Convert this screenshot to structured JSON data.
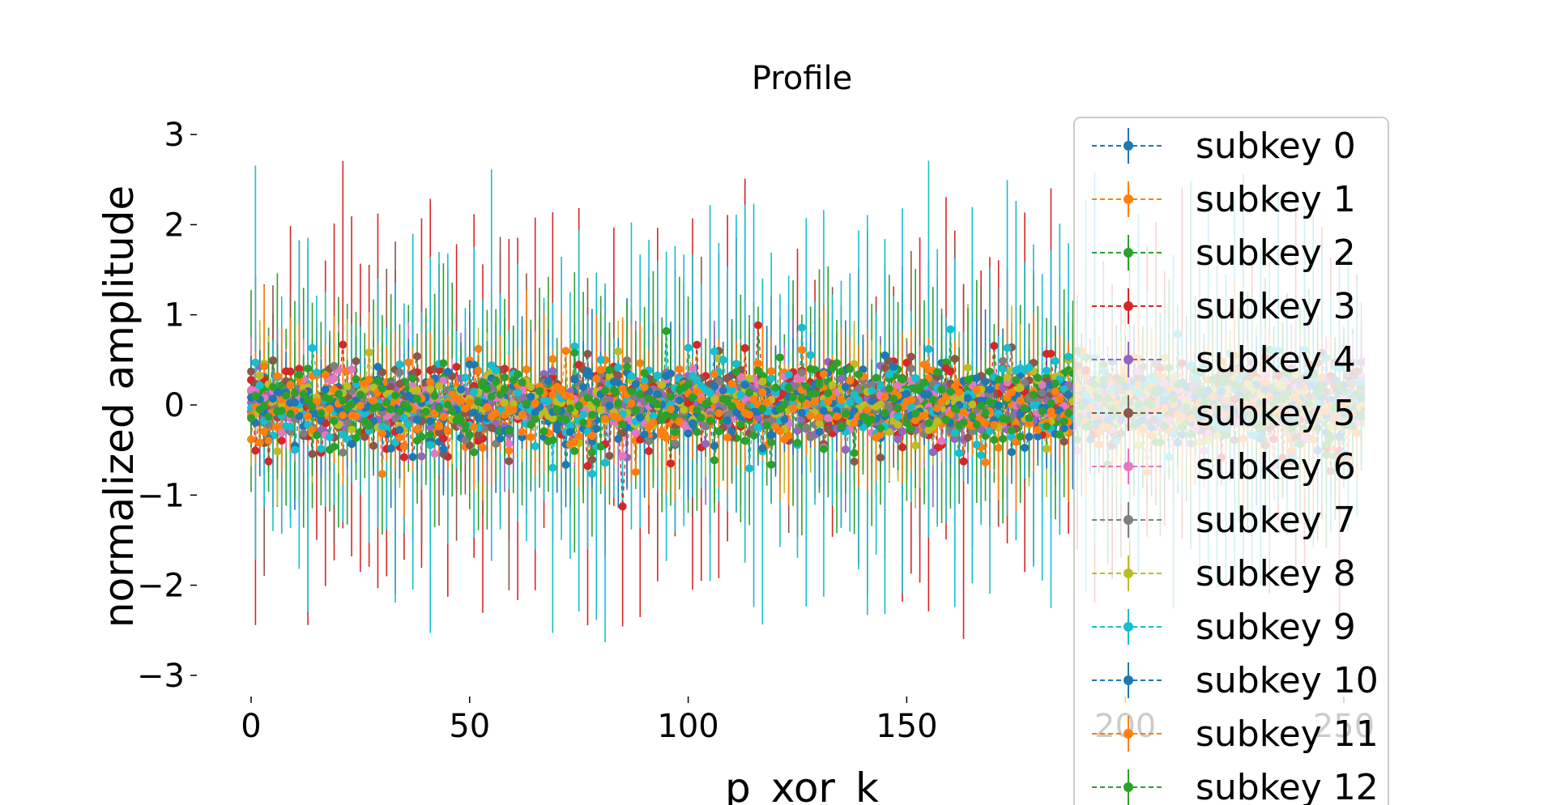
{
  "chart_data": {
    "type": "scatter",
    "title": "Profile",
    "xlabel": "p_xor_k",
    "ylabel": "normalized amplitude",
    "xlim": [
      -6,
      261
    ],
    "ylim": [
      -3.3,
      3.3
    ],
    "xticks": [
      0,
      50,
      100,
      150,
      200,
      250
    ],
    "yticks": [
      3,
      2,
      1,
      0,
      -1,
      -2,
      -3
    ],
    "ytick_labels": [
      "3",
      "2",
      "1",
      "0",
      "−1",
      "−2",
      "−3"
    ],
    "grid": false,
    "legend_position": "right",
    "x_points": "0-255 (one point per p_xor_k value, all 256 values)",
    "series": [
      {
        "name": "subkey 0",
        "color": "#1f77b4",
        "mean": 0.0,
        "spread": 0.22,
        "err": 0.55
      },
      {
        "name": "subkey 1",
        "color": "#ff7f0e",
        "mean": 0.0,
        "spread": 0.22,
        "err": 0.55
      },
      {
        "name": "subkey 2",
        "color": "#2ca02c",
        "mean": 0.0,
        "spread": 0.25,
        "err": 0.9
      },
      {
        "name": "subkey 3",
        "color": "#d62728",
        "mean": 0.0,
        "spread": 0.28,
        "err": 1.4
      },
      {
        "name": "subkey 4",
        "color": "#9467bd",
        "mean": 0.0,
        "spread": 0.2,
        "err": 0.5
      },
      {
        "name": "subkey 5",
        "color": "#8c564b",
        "mean": 0.0,
        "spread": 0.28,
        "err": 1.0
      },
      {
        "name": "subkey 6",
        "color": "#e377c2",
        "mean": 0.0,
        "spread": 0.18,
        "err": 0.4
      },
      {
        "name": "subkey 7",
        "color": "#7f7f7f",
        "mean": 0.0,
        "spread": 0.18,
        "err": 0.4
      },
      {
        "name": "subkey 8",
        "color": "#bcbd22",
        "mean": 0.0,
        "spread": 0.2,
        "err": 0.5
      },
      {
        "name": "subkey 9",
        "color": "#17becf",
        "mean": 0.0,
        "spread": 0.3,
        "err": 1.5
      },
      {
        "name": "subkey 10",
        "color": "#1f77b4",
        "mean": 0.0,
        "spread": 0.2,
        "err": 0.5
      },
      {
        "name": "subkey 11",
        "color": "#ff7f0e",
        "mean": 0.0,
        "spread": 0.22,
        "err": 0.6
      },
      {
        "name": "subkey 12",
        "color": "#2ca02c",
        "mean": 0.0,
        "spread": 0.22,
        "err": 0.6
      }
    ]
  }
}
